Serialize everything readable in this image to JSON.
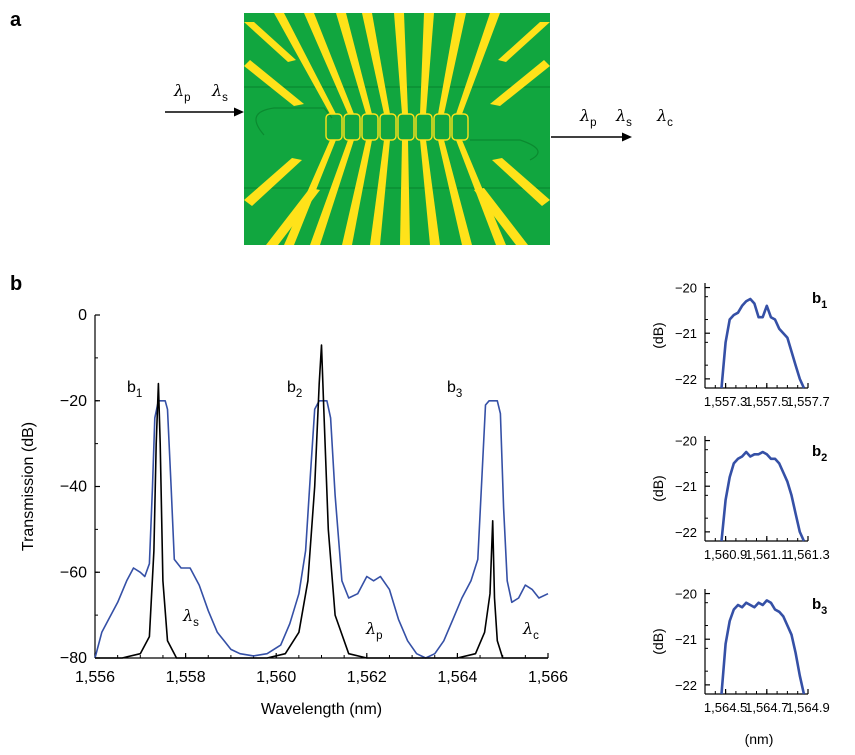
{
  "colors": {
    "chip_green": "#11a63f",
    "chip_green_dark": "#0b8a30",
    "electrode_yellow": "#ffe21a",
    "blue_trace": "#3550a6",
    "black_trace": "#000000"
  },
  "panel_a": {
    "letter": "a",
    "input_labels": [
      {
        "main": "λ",
        "sub": "p"
      },
      {
        "main": "λ",
        "sub": "s"
      }
    ],
    "output_labels": [
      {
        "main": "λ",
        "sub": "p"
      },
      {
        "main": "λ",
        "sub": "s"
      },
      {
        "main": "λ",
        "sub": "c"
      }
    ]
  },
  "panel_b": {
    "letter": "b",
    "main_peak_labels": [
      {
        "main": "b",
        "sub": "1"
      },
      {
        "main": "b",
        "sub": "2"
      },
      {
        "main": "b",
        "sub": "3"
      }
    ],
    "signal_labels": [
      {
        "main": "λ",
        "sub": "s"
      },
      {
        "main": "λ",
        "sub": "p"
      },
      {
        "main": "λ",
        "sub": "c"
      }
    ]
  },
  "chart_data": [
    {
      "type": "line",
      "xlabel": "Wavelength (nm)",
      "ylabel": "Transmission (dB)",
      "xlim": [
        1556,
        1566
      ],
      "ylim": [
        -80,
        0
      ],
      "xticks": [
        1556,
        1558,
        1560,
        1562,
        1564,
        1566
      ],
      "xtick_labels": [
        "1,556",
        "1,558",
        "1,560",
        "1,562",
        "1,564",
        "1,566"
      ],
      "yticks": [
        0,
        -20,
        -40,
        -60,
        -80
      ],
      "ytick_labels": [
        "0",
        "−20",
        "−40",
        "−60",
        "−80"
      ],
      "series": [
        {
          "color": "#3550a6",
          "x": [
            1556.0,
            1556.15,
            1556.3,
            1556.5,
            1556.7,
            1556.85,
            1557.0,
            1557.1,
            1557.2,
            1557.27,
            1557.32,
            1557.4,
            1557.5,
            1557.55,
            1557.6,
            1557.68,
            1557.75,
            1557.9,
            1558.1,
            1558.3,
            1558.5,
            1558.7,
            1558.85,
            1559.0,
            1559.2,
            1559.5,
            1559.8,
            1560.1,
            1560.3,
            1560.5,
            1560.65,
            1560.75,
            1560.85,
            1560.95,
            1561.05,
            1561.12,
            1561.2,
            1561.3,
            1561.45,
            1561.6,
            1561.8,
            1562.0,
            1562.15,
            1562.3,
            1562.5,
            1562.7,
            1562.9,
            1563.1,
            1563.3,
            1563.5,
            1563.7,
            1563.9,
            1564.1,
            1564.3,
            1564.45,
            1564.55,
            1564.62,
            1564.7,
            1564.8,
            1564.88,
            1564.95,
            1565.02,
            1565.1,
            1565.2,
            1565.35,
            1565.5,
            1565.65,
            1565.8,
            1566.0
          ],
          "y": [
            -80,
            -74,
            -71,
            -67,
            -62,
            -59,
            -60,
            -61,
            -58,
            -40,
            -24,
            -20,
            -20,
            -20,
            -22,
            -40,
            -57,
            -59,
            -59,
            -63,
            -69,
            -74,
            -76,
            -78,
            -79,
            -79.5,
            -79,
            -77,
            -72,
            -65,
            -55,
            -38,
            -22,
            -20,
            -20,
            -20,
            -24,
            -42,
            -62,
            -66,
            -65,
            -61,
            -62,
            -61,
            -64,
            -71,
            -76,
            -79,
            -80,
            -79,
            -76,
            -71,
            -66,
            -62,
            -57,
            -36,
            -21,
            -20,
            -20,
            -20,
            -23,
            -45,
            -62,
            -67,
            -66,
            -63,
            -64,
            -66,
            -65
          ]
        },
        {
          "color": "#000000",
          "x": [
            1556.0,
            1556.6,
            1557.0,
            1557.2,
            1557.3,
            1557.35,
            1557.4,
            1557.44,
            1557.5,
            1557.6,
            1557.8,
            1558.2,
            1559.0,
            1559.8,
            1560.2,
            1560.5,
            1560.7,
            1560.85,
            1560.95,
            1561.0,
            1561.05,
            1561.15,
            1561.3,
            1561.6,
            1562.0,
            1563.0,
            1564.0,
            1564.4,
            1564.6,
            1564.72,
            1564.78,
            1564.82,
            1564.88,
            1565.0,
            1565.4,
            1566.0
          ],
          "y": [
            -80,
            -80,
            -79,
            -75,
            -55,
            -30,
            -16,
            -30,
            -62,
            -76,
            -80,
            -80,
            -80,
            -80,
            -79,
            -74,
            -62,
            -40,
            -16,
            -7,
            -22,
            -50,
            -70,
            -79,
            -80,
            -80,
            -80,
            -79,
            -74,
            -65,
            -48,
            -66,
            -76,
            -80,
            -80,
            -80
          ]
        }
      ]
    },
    {
      "type": "line",
      "label": "b1",
      "xlabel": "",
      "ylabel": "(dB)",
      "xlim": [
        1557.2,
        1557.7
      ],
      "ylim": [
        -22.2,
        -19.9
      ],
      "xticks": [
        1557.3,
        1557.5,
        1557.7
      ],
      "xtick_labels": [
        "1,557.3",
        "1,557.5",
        "1,557.7"
      ],
      "yticks": [
        -20,
        -21,
        -22
      ],
      "ytick_labels": [
        "−20",
        "−21",
        "−22"
      ],
      "series": [
        {
          "color": "#3550a6",
          "x": [
            1557.28,
            1557.3,
            1557.32,
            1557.34,
            1557.36,
            1557.38,
            1557.4,
            1557.42,
            1557.44,
            1557.46,
            1557.48,
            1557.5,
            1557.52,
            1557.54,
            1557.56,
            1557.58,
            1557.6,
            1557.62,
            1557.64,
            1557.66,
            1557.68
          ],
          "y": [
            -22.2,
            -21.2,
            -20.7,
            -20.6,
            -20.55,
            -20.4,
            -20.3,
            -20.25,
            -20.35,
            -20.65,
            -20.65,
            -20.4,
            -20.65,
            -20.7,
            -20.9,
            -21.0,
            -21.1,
            -21.4,
            -21.7,
            -22.0,
            -22.2
          ]
        }
      ]
    },
    {
      "type": "line",
      "label": "b2",
      "xlabel": "",
      "ylabel": "(dB)",
      "xlim": [
        1560.8,
        1561.3
      ],
      "ylim": [
        -22.2,
        -19.9
      ],
      "xticks": [
        1560.9,
        1561.1,
        1561.3
      ],
      "xtick_labels": [
        "1,560.9",
        "1,561.1",
        "1,561.3"
      ],
      "yticks": [
        -20,
        -21,
        -22
      ],
      "ytick_labels": [
        "−20",
        "−21",
        "−22"
      ],
      "series": [
        {
          "color": "#3550a6",
          "x": [
            1560.88,
            1560.9,
            1560.92,
            1560.94,
            1560.96,
            1560.98,
            1561.0,
            1561.02,
            1561.04,
            1561.06,
            1561.08,
            1561.1,
            1561.12,
            1561.14,
            1561.16,
            1561.18,
            1561.2,
            1561.22,
            1561.24,
            1561.26,
            1561.28
          ],
          "y": [
            -22.2,
            -21.3,
            -20.8,
            -20.5,
            -20.4,
            -20.35,
            -20.25,
            -20.35,
            -20.3,
            -20.3,
            -20.25,
            -20.3,
            -20.4,
            -20.4,
            -20.5,
            -20.7,
            -20.9,
            -21.2,
            -21.6,
            -22.0,
            -22.2
          ]
        }
      ]
    },
    {
      "type": "line",
      "label": "b3",
      "xlabel": "(nm)",
      "ylabel": "(dB)",
      "xlim": [
        1564.4,
        1564.9
      ],
      "ylim": [
        -22.2,
        -19.9
      ],
      "xticks": [
        1564.5,
        1564.7,
        1564.9
      ],
      "xtick_labels": [
        "1,564.5",
        "1,564.7",
        "1,564.9"
      ],
      "yticks": [
        -20,
        -21,
        -22
      ],
      "ytick_labels": [
        "−20",
        "−21",
        "−22"
      ],
      "series": [
        {
          "color": "#3550a6",
          "x": [
            1564.48,
            1564.5,
            1564.52,
            1564.54,
            1564.56,
            1564.58,
            1564.6,
            1564.62,
            1564.64,
            1564.66,
            1564.68,
            1564.7,
            1564.72,
            1564.74,
            1564.76,
            1564.78,
            1564.8,
            1564.82,
            1564.84,
            1564.86,
            1564.88
          ],
          "y": [
            -22.2,
            -21.1,
            -20.6,
            -20.35,
            -20.25,
            -20.3,
            -20.2,
            -20.25,
            -20.3,
            -20.2,
            -20.25,
            -20.15,
            -20.2,
            -20.35,
            -20.4,
            -20.5,
            -20.7,
            -20.9,
            -21.3,
            -21.8,
            -22.2
          ]
        }
      ]
    }
  ]
}
